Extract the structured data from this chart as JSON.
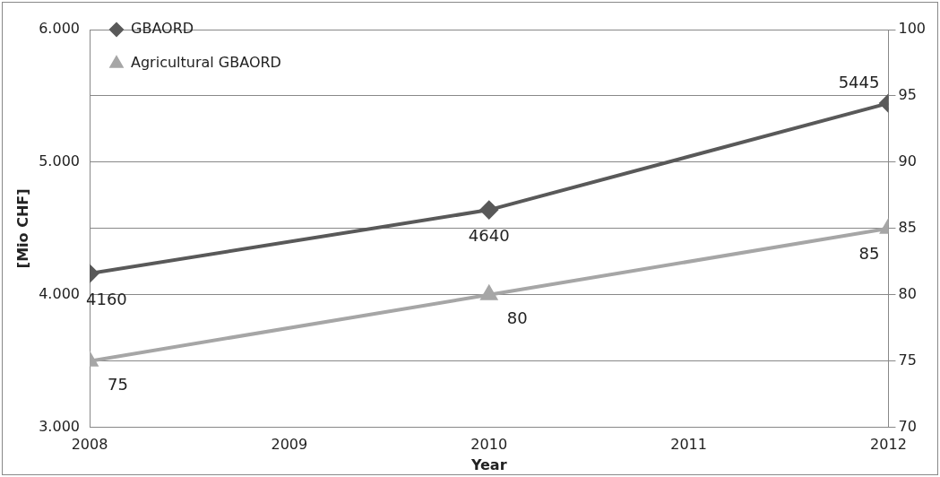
{
  "chart_data": {
    "type": "line",
    "xlabel": "Year",
    "ylabel": "[Mio CHF]",
    "x": [
      2008,
      2010,
      2012
    ],
    "series": [
      {
        "name": "GBAORD",
        "color": "#595959",
        "values": [
          4160,
          4640,
          5445
        ],
        "marker": "diamond"
      },
      {
        "name": "Agricultural GBAORD",
        "color": "#a6a6a6",
        "values": [
          75,
          80,
          85
        ],
        "marker": "triangle",
        "axis": "y2"
      }
    ],
    "xlim": [
      2008,
      2012
    ],
    "xticks": [
      2008,
      2009,
      2010,
      2011,
      2012
    ],
    "ylim": [
      3000,
      6000
    ],
    "yticks": [
      {
        "value": 3000,
        "label": "3.000"
      },
      {
        "value": 4000,
        "label": "4.000"
      },
      {
        "value": 5000,
        "label": "5.000"
      },
      {
        "value": 6000,
        "label": "6.000"
      }
    ],
    "y2lim": [
      70,
      100
    ],
    "y2ticks": [
      70,
      75,
      80,
      85,
      90,
      95,
      100
    ],
    "grid": "y",
    "legend": "top left",
    "data_labels": true
  }
}
